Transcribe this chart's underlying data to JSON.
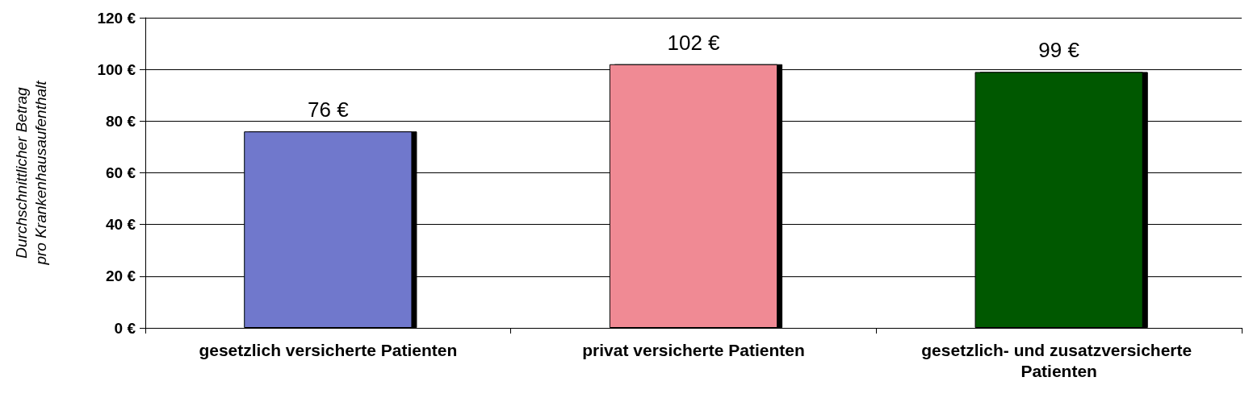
{
  "chart_data": {
    "type": "bar",
    "ylabel": "Durchschnittlicher Betrag pro Krankenhausaufenthalt",
    "categories": [
      "gesetzlich versicherte Patienten",
      "privat versicherte Patienten",
      "gesetzlich- und zusatzversicherte Patienten"
    ],
    "values": [
      76,
      102,
      99
    ],
    "colors": [
      "#7078cc",
      "#f08a94",
      "#005800"
    ],
    "value_labels": [
      "76 €",
      "102 €",
      "99 €"
    ],
    "ylim": [
      0,
      120
    ],
    "yticks": [
      {
        "value": 0,
        "label": "0 €"
      },
      {
        "value": 20,
        "label": "20 €"
      },
      {
        "value": 40,
        "label": "40 €"
      },
      {
        "value": 60,
        "label": "60 €"
      },
      {
        "value": 80,
        "label": "80 €"
      },
      {
        "value": 100,
        "label": "100 €"
      },
      {
        "value": 120,
        "label": "120 €"
      }
    ],
    "grid": "y"
  }
}
